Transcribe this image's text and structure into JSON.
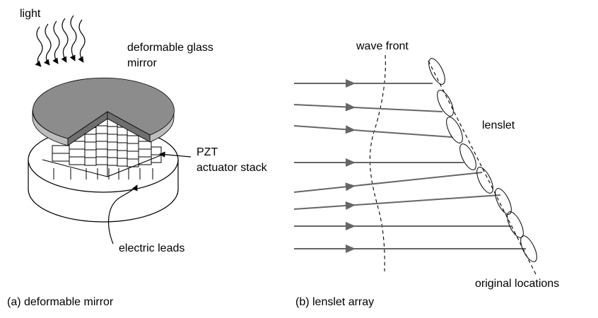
{
  "panel_a": {
    "labels": {
      "light": "light",
      "mirror_line1": "deformable glass",
      "mirror_line2": "mirror",
      "pzt_line1": "PZT",
      "pzt_line2": "actuator stack",
      "leads": "electric leads"
    },
    "caption": "(a) deformable mirror"
  },
  "panel_b": {
    "labels": {
      "wave_front": "wave front",
      "lenslet": "lenslet",
      "original_locations": "original locations"
    },
    "caption": "(b) lenslet array"
  },
  "colors": {
    "mirror_top": "#8c8c8c",
    "mirror_edge": "#bdbdbd",
    "mirror_cut": "#6f6f6f",
    "ray": "#666666",
    "line": "#000000"
  }
}
